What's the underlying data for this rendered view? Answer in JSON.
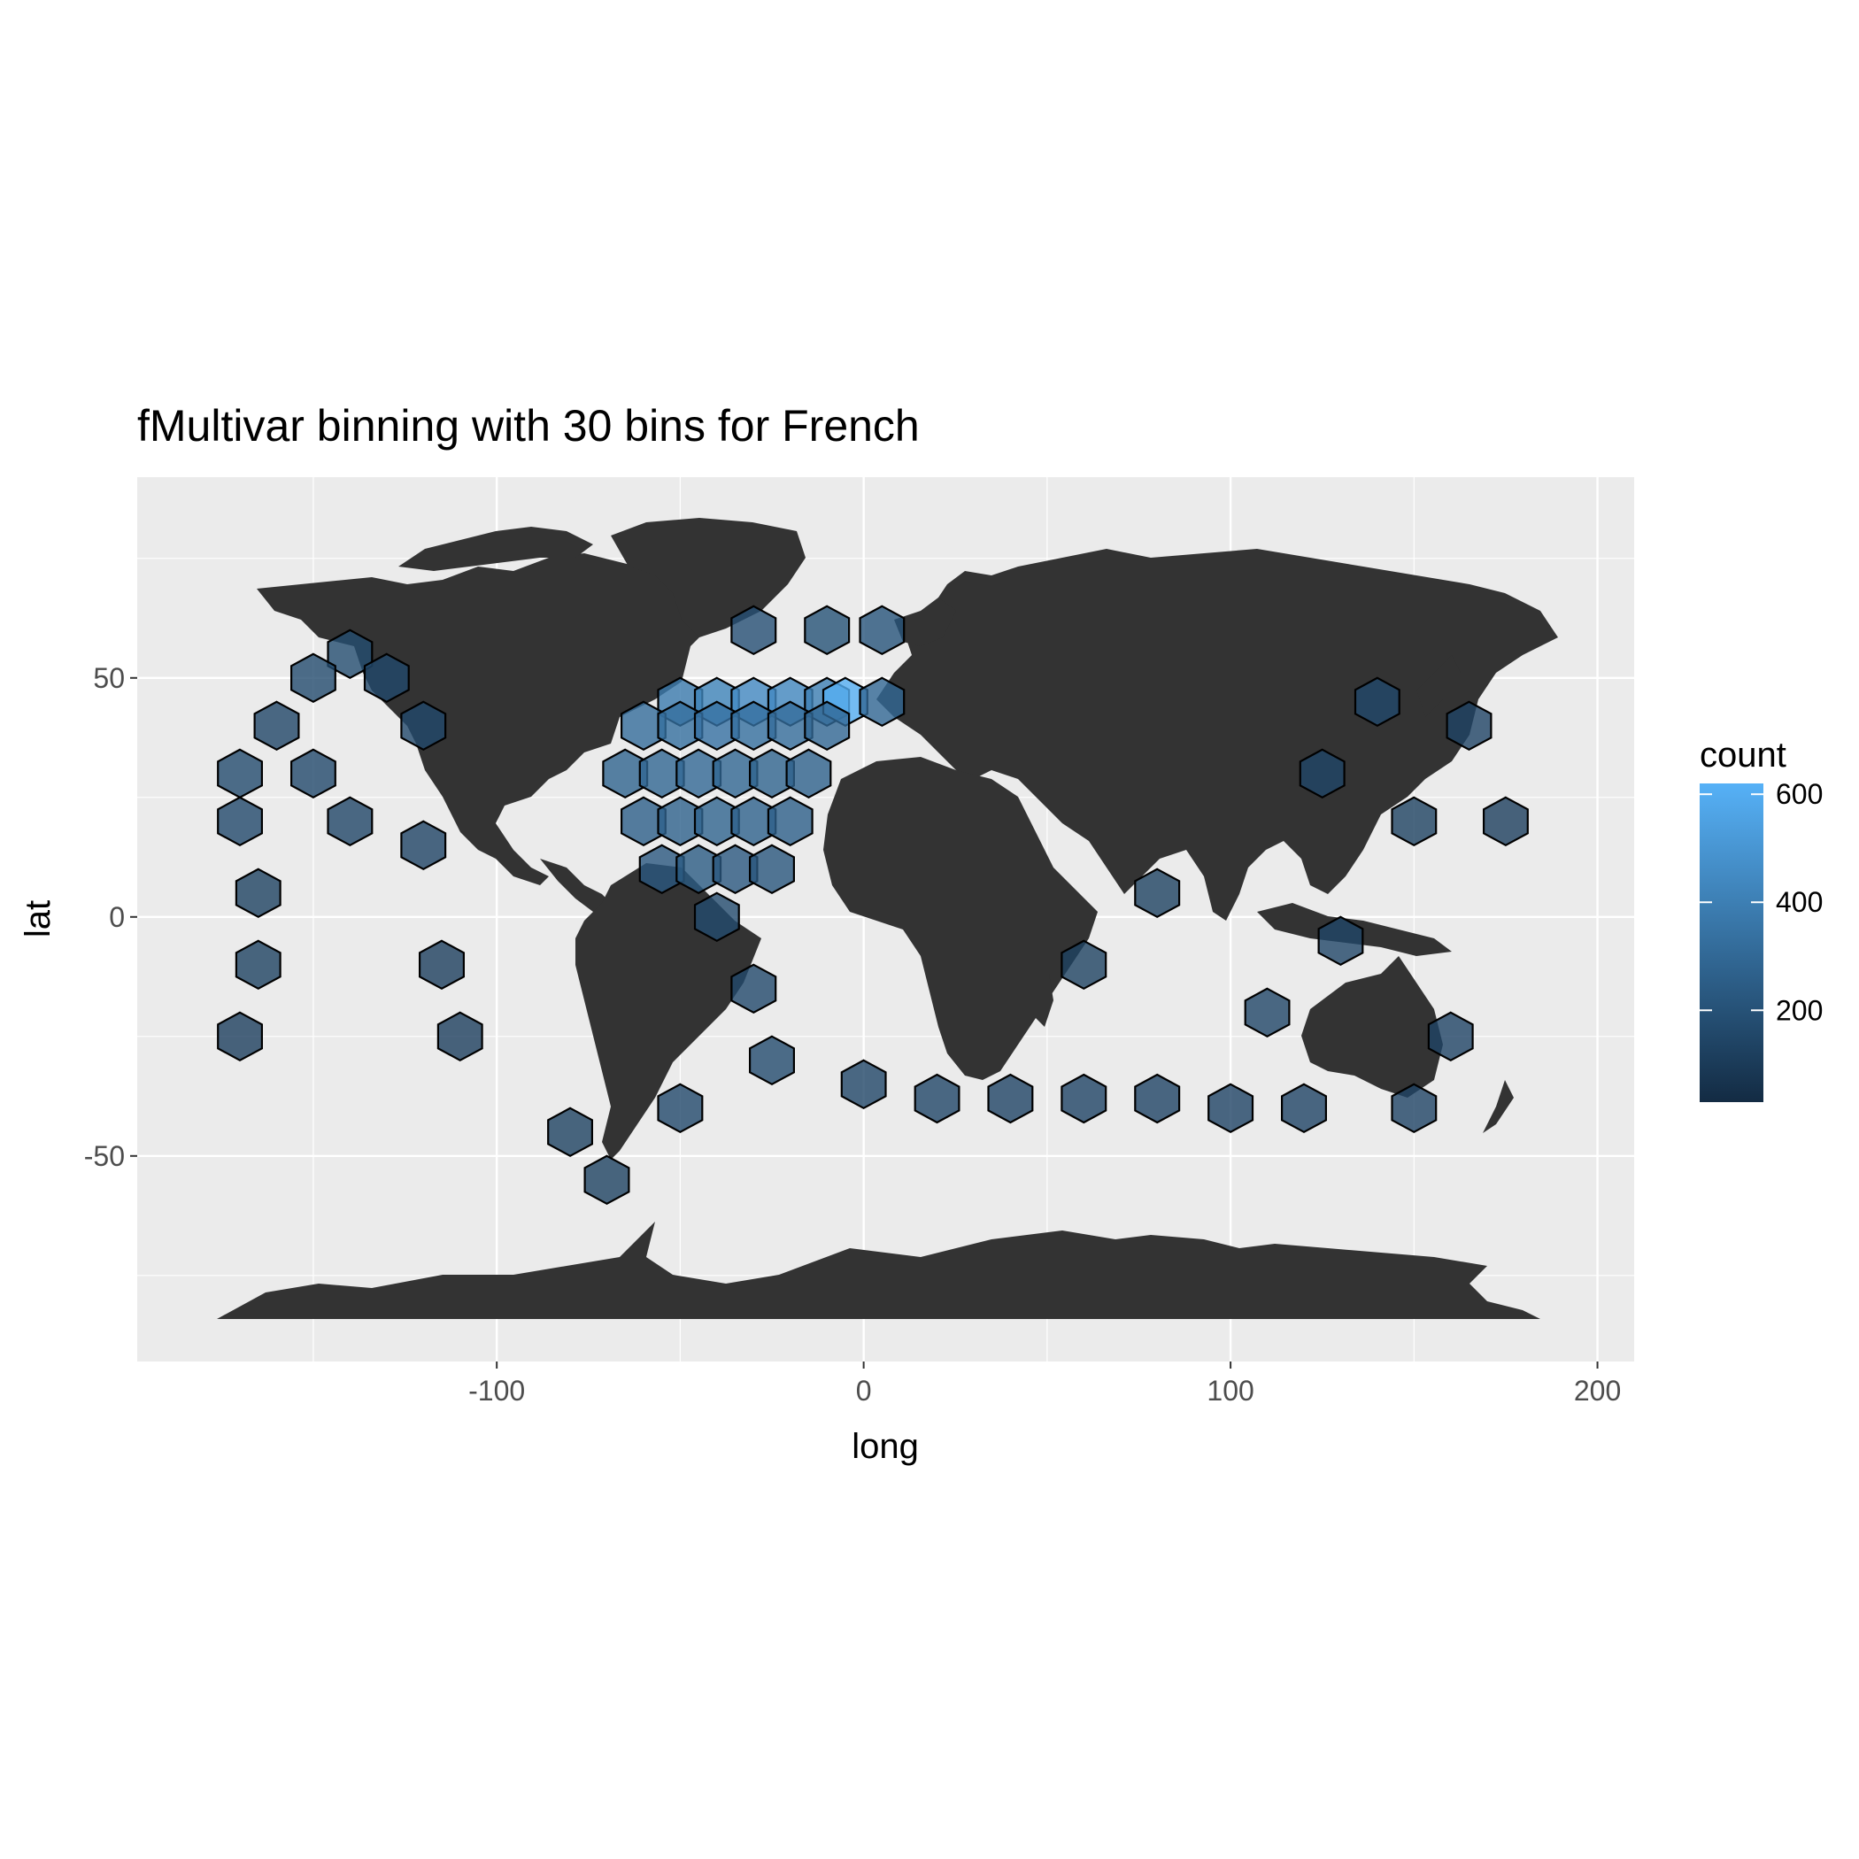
{
  "chart_data": {
    "type": "hexbin",
    "title": "fMultivar binning with 30 bins for French",
    "xlabel": "long",
    "ylabel": "lat",
    "xlim": [
      -198,
      210
    ],
    "ylim": [
      -93,
      92
    ],
    "x_ticks": [
      -100,
      0,
      100,
      200
    ],
    "x_tick_labels": [
      "-100",
      "0",
      "100",
      "200"
    ],
    "y_ticks": [
      -50,
      0,
      50
    ],
    "y_tick_labels": [
      "-50",
      "0",
      "50"
    ],
    "grid": true,
    "background": "#ebebeb",
    "land_color": "#333333",
    "legend": {
      "title": "count",
      "position": "right",
      "ticks": [
        200,
        400,
        600
      ],
      "tick_labels": [
        "200",
        "400",
        "600"
      ],
      "range": [
        30,
        620
      ],
      "color_low": "#132b43",
      "color_high": "#56b1f7"
    },
    "hex_size_deg": {
      "dx": 12,
      "dy": 5
    },
    "bins": [
      {
        "x": -50,
        "y": 45,
        "count": 380
      },
      {
        "x": -40,
        "y": 45,
        "count": 420
      },
      {
        "x": -30,
        "y": 45,
        "count": 450
      },
      {
        "x": -20,
        "y": 45,
        "count": 440
      },
      {
        "x": -10,
        "y": 45,
        "count": 400
      },
      {
        "x": -5,
        "y": 45,
        "count": 610
      },
      {
        "x": 5,
        "y": 45,
        "count": 300
      },
      {
        "x": -60,
        "y": 40,
        "count": 320
      },
      {
        "x": -50,
        "y": 40,
        "count": 330
      },
      {
        "x": -40,
        "y": 40,
        "count": 340
      },
      {
        "x": -30,
        "y": 40,
        "count": 330
      },
      {
        "x": -20,
        "y": 40,
        "count": 320
      },
      {
        "x": -10,
        "y": 40,
        "count": 300
      },
      {
        "x": -65,
        "y": 30,
        "count": 280
      },
      {
        "x": -55,
        "y": 30,
        "count": 290
      },
      {
        "x": -45,
        "y": 30,
        "count": 300
      },
      {
        "x": -35,
        "y": 30,
        "count": 290
      },
      {
        "x": -25,
        "y": 30,
        "count": 280
      },
      {
        "x": -15,
        "y": 30,
        "count": 270
      },
      {
        "x": -60,
        "y": 20,
        "count": 260
      },
      {
        "x": -50,
        "y": 20,
        "count": 270
      },
      {
        "x": -40,
        "y": 20,
        "count": 280
      },
      {
        "x": -30,
        "y": 20,
        "count": 270
      },
      {
        "x": -20,
        "y": 20,
        "count": 260
      },
      {
        "x": -55,
        "y": 10,
        "count": 230
      },
      {
        "x": -45,
        "y": 10,
        "count": 240
      },
      {
        "x": -35,
        "y": 10,
        "count": 230
      },
      {
        "x": -25,
        "y": 10,
        "count": 220
      },
      {
        "x": -140,
        "y": 55,
        "count": 180
      },
      {
        "x": -150,
        "y": 50,
        "count": 170
      },
      {
        "x": -130,
        "y": 50,
        "count": 160
      },
      {
        "x": -160,
        "y": 40,
        "count": 150
      },
      {
        "x": -120,
        "y": 40,
        "count": 160
      },
      {
        "x": -170,
        "y": 30,
        "count": 170
      },
      {
        "x": -150,
        "y": 30,
        "count": 160
      },
      {
        "x": -170,
        "y": 20,
        "count": 160
      },
      {
        "x": -140,
        "y": 20,
        "count": 150
      },
      {
        "x": -120,
        "y": 15,
        "count": 140
      },
      {
        "x": -165,
        "y": 5,
        "count": 130
      },
      {
        "x": -165,
        "y": -10,
        "count": 130
      },
      {
        "x": -170,
        "y": -25,
        "count": 120
      },
      {
        "x": -115,
        "y": -10,
        "count": 120
      },
      {
        "x": -110,
        "y": -25,
        "count": 120
      },
      {
        "x": -80,
        "y": -45,
        "count": 130
      },
      {
        "x": -70,
        "y": -55,
        "count": 130
      },
      {
        "x": -40,
        "y": 0,
        "count": 170
      },
      {
        "x": -30,
        "y": -15,
        "count": 160
      },
      {
        "x": -25,
        "y": -30,
        "count": 170
      },
      {
        "x": -50,
        "y": -40,
        "count": 160
      },
      {
        "x": 0,
        "y": -35,
        "count": 150
      },
      {
        "x": 20,
        "y": -38,
        "count": 150
      },
      {
        "x": 40,
        "y": -38,
        "count": 140
      },
      {
        "x": 60,
        "y": -38,
        "count": 140
      },
      {
        "x": 80,
        "y": -38,
        "count": 140
      },
      {
        "x": 100,
        "y": -40,
        "count": 140
      },
      {
        "x": 120,
        "y": -40,
        "count": 140
      },
      {
        "x": 150,
        "y": -40,
        "count": 140
      },
      {
        "x": 60,
        "y": -10,
        "count": 130
      },
      {
        "x": 80,
        "y": 5,
        "count": 130
      },
      {
        "x": 110,
        "y": -20,
        "count": 150
      },
      {
        "x": 130,
        "y": -5,
        "count": 150
      },
      {
        "x": 160,
        "y": -25,
        "count": 140
      },
      {
        "x": 125,
        "y": 30,
        "count": 150
      },
      {
        "x": 140,
        "y": 45,
        "count": 160
      },
      {
        "x": 165,
        "y": 40,
        "count": 140
      },
      {
        "x": 150,
        "y": 20,
        "count": 130
      },
      {
        "x": 175,
        "y": 20,
        "count": 120
      },
      {
        "x": -30,
        "y": 60,
        "count": 190
      },
      {
        "x": -10,
        "y": 60,
        "count": 200
      },
      {
        "x": 5,
        "y": 60,
        "count": 210
      }
    ]
  }
}
